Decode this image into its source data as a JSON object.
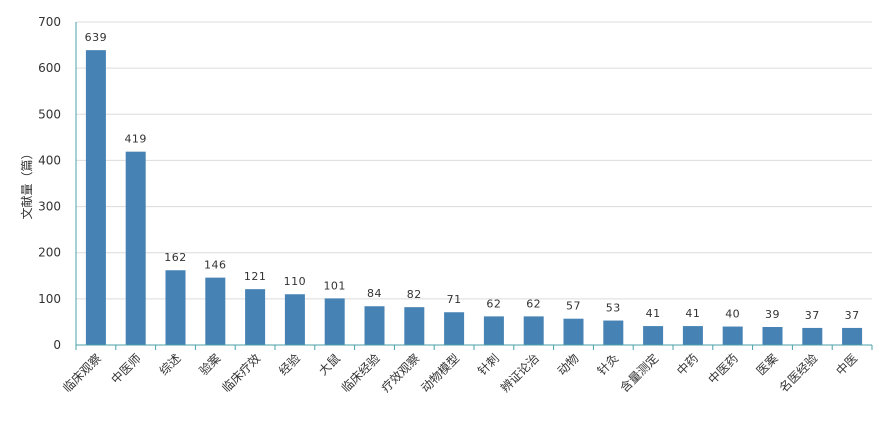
{
  "colors": {
    "bar": "#4682B4",
    "grid": "#DCDCDC",
    "axis": "#48A0A8",
    "text": "#333333"
  },
  "chart_data": {
    "type": "bar",
    "title": "",
    "xlabel": "",
    "ylabel": "文献量（篇）",
    "ylim": [
      0,
      700
    ],
    "yticks": [
      0,
      100,
      200,
      300,
      400,
      500,
      600,
      700
    ],
    "grid": true,
    "categories": [
      "临床观察",
      "中医师",
      "综述",
      "验案",
      "临床疗效",
      "经验",
      "大鼠",
      "临床经验",
      "疗效观察",
      "动物模型",
      "针刺",
      "辨证论治",
      "动物",
      "针灸",
      "含量测定",
      "中药",
      "中医药",
      "医案",
      "名医经验",
      "中医"
    ],
    "values": [
      639,
      419,
      162,
      146,
      121,
      110,
      101,
      84,
      82,
      71,
      62,
      62,
      57,
      53,
      41,
      41,
      40,
      39,
      37,
      37
    ]
  }
}
